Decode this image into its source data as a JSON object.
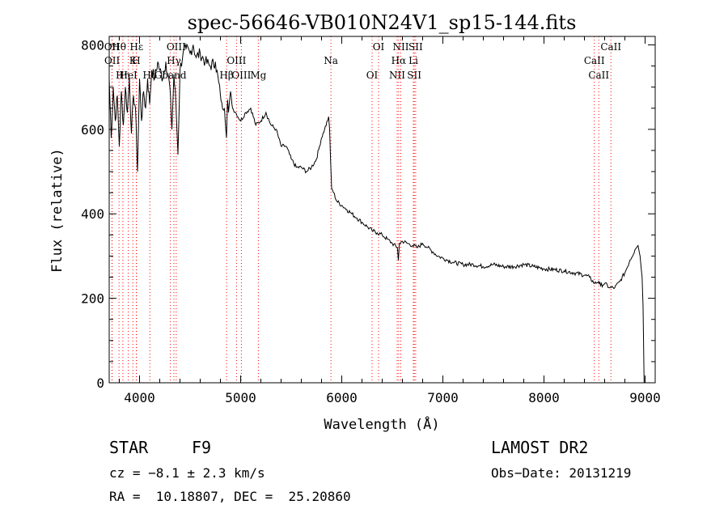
{
  "chart_data": {
    "type": "line",
    "title": "spec-56646-VB010N24V1_sp15-144.fits",
    "xlabel": "Wavelength (Å)",
    "ylabel": "Flux (relative)",
    "xlim": [
      3700,
      9100
    ],
    "ylim": [
      0,
      820
    ],
    "xticks": [
      4000,
      5000,
      6000,
      7000,
      8000,
      9000
    ],
    "yticks": [
      0,
      200,
      400,
      600,
      800
    ],
    "grid": false,
    "series": [
      {
        "x": [
          3700,
          3720,
          3740,
          3760,
          3780,
          3800,
          3820,
          3840,
          3860,
          3880,
          3900,
          3920,
          3940,
          3960,
          3980,
          4000,
          4020,
          4040,
          4060,
          4080,
          4100,
          4120,
          4150,
          4180,
          4200,
          4230,
          4260,
          4300,
          4320,
          4340,
          4360,
          4380,
          4400,
          4430,
          4460,
          4500,
          4530,
          4560,
          4600,
          4650,
          4700,
          4750,
          4800,
          4820,
          4840,
          4860,
          4870,
          4880,
          4900,
          4920,
          4950,
          5000,
          5050,
          5100,
          5150,
          5200,
          5250,
          5300,
          5350,
          5400,
          5450,
          5500,
          5550,
          5600,
          5650,
          5700,
          5750,
          5780,
          5800,
          5830,
          5860,
          5870,
          5880,
          5890,
          5900,
          5920,
          5950,
          6000,
          6050,
          6100,
          6150,
          6200,
          6250,
          6300,
          6350,
          6400,
          6450,
          6500,
          6550,
          6560,
          6570,
          6600,
          6650,
          6700,
          6750,
          6800,
          6850,
          6900,
          6950,
          7000,
          7050,
          7100,
          7200,
          7300,
          7400,
          7500,
          7600,
          7700,
          7800,
          7900,
          8000,
          8100,
          8200,
          8300,
          8400,
          8450,
          8500,
          8540,
          8560,
          8600,
          8650,
          8700,
          8750,
          8800,
          8850,
          8900,
          8930,
          8950,
          8970,
          8980,
          8990,
          9000
        ],
        "y": [
          720,
          580,
          700,
          620,
          680,
          560,
          690,
          610,
          700,
          640,
          720,
          590,
          680,
          650,
          500,
          720,
          620,
          690,
          650,
          720,
          660,
          740,
          720,
          760,
          740,
          720,
          760,
          700,
          600,
          730,
          660,
          540,
          740,
          780,
          790,
          780,
          800,
          770,
          780,
          760,
          750,
          760,
          680,
          650,
          650,
          580,
          670,
          640,
          690,
          650,
          640,
          620,
          640,
          650,
          610,
          620,
          640,
          610,
          600,
          560,
          560,
          530,
          510,
          510,
          500,
          510,
          530,
          560,
          580,
          600,
          620,
          630,
          600,
          520,
          460,
          450,
          430,
          420,
          410,
          400,
          390,
          380,
          370,
          360,
          355,
          350,
          340,
          330,
          320,
          290,
          330,
          335,
          330,
          325,
          320,
          330,
          320,
          310,
          300,
          295,
          290,
          285,
          280,
          280,
          275,
          280,
          275,
          275,
          280,
          275,
          270,
          268,
          265,
          260,
          255,
          250,
          235,
          240,
          230,
          235,
          225,
          225,
          240,
          260,
          290,
          315,
          325,
          300,
          250,
          180,
          0,
          0
        ]
      }
    ],
    "lines": [
      {
        "label": "Hθ",
        "x": 3797
      },
      {
        "label": "K",
        "x": 3934
      },
      {
        "label": "Hδ",
        "x": 4102
      },
      {
        "label": "OII",
        "x": 3727
      },
      {
        "label": "OII",
        "x": 3729
      },
      {
        "label": "HeI",
        "x": 3889
      },
      {
        "label": "Hε",
        "x": 3970
      },
      {
        "label": "H",
        "x": 3968
      },
      {
        "label": "Hη",
        "x": 3835
      },
      {
        "label": "OIII",
        "x": 4363
      },
      {
        "label": "Hγ",
        "x": 4340
      },
      {
        "label": "Gband",
        "x": 4305
      },
      {
        "label": "Hβ",
        "x": 4861
      },
      {
        "label": "OIII",
        "x": 4959
      },
      {
        "label": "OIII",
        "x": 5007
      },
      {
        "label": "Mg",
        "x": 5175
      },
      {
        "label": "Na",
        "x": 5893
      },
      {
        "label": "OI",
        "x": 6300
      },
      {
        "label": "OI",
        "x": 6364
      },
      {
        "label": "Hα",
        "x": 6563
      },
      {
        "label": "NII",
        "x": 6548
      },
      {
        "label": "NII",
        "x": 6584
      },
      {
        "label": "Li",
        "x": 6708
      },
      {
        "label": "SII",
        "x": 6717
      },
      {
        "label": "SII",
        "x": 6731
      },
      {
        "label": "CaII",
        "x": 8498
      },
      {
        "label": "CaII",
        "x": 8542
      },
      {
        "label": "CaII",
        "x": 8662
      }
    ]
  },
  "info": {
    "class_label": "STAR",
    "subclass": "F9",
    "survey": "LAMOST DR2",
    "cz": "cz = −8.1 ± 2.3 km/s",
    "obs_date": "Obs−Date: 20131219",
    "coords": "RA =  10.18807, DEC =  25.20860"
  },
  "colors": {
    "line": "#000000",
    "marker_line": "#ff0000"
  }
}
